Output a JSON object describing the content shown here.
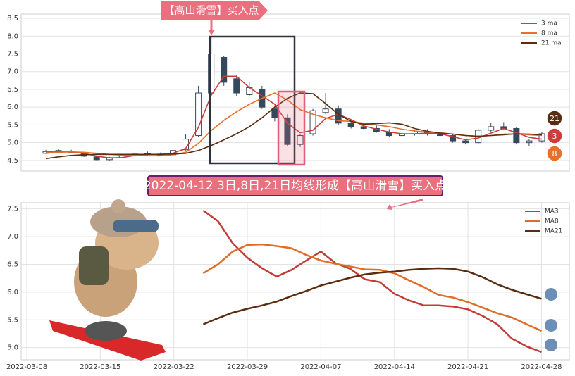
{
  "annotations": {
    "top_banner": "【高山滑雪】买入点",
    "middle_banner": "2022-04-12 3日,8日,21日均线形成【高山滑雪】买入点"
  },
  "chart_data": [
    {
      "type": "candlestick",
      "up_color": "#ffffff",
      "down_color": "#34495e",
      "open": [
        4.7,
        4.78,
        4.76,
        4.7,
        4.6,
        4.52,
        4.58,
        4.65,
        4.7,
        4.68,
        4.66,
        4.8,
        5.2,
        6.4,
        7.4,
        6.8,
        6.35,
        6.5,
        5.95,
        5.7,
        4.95,
        5.25,
        5.85,
        5.95,
        5.55,
        5.45,
        5.4,
        5.3,
        5.2,
        5.25,
        5.3,
        5.25,
        5.2,
        5.05,
        5.0,
        5.35,
        5.45,
        5.4,
        5.0,
        5.05
      ],
      "high": [
        4.8,
        4.82,
        4.8,
        4.72,
        4.62,
        4.6,
        4.68,
        4.72,
        4.75,
        4.72,
        4.82,
        5.25,
        6.6,
        8.0,
        7.45,
        6.9,
        6.7,
        6.6,
        6.05,
        5.8,
        5.25,
        5.95,
        6.4,
        6.05,
        5.65,
        5.55,
        5.48,
        5.38,
        5.3,
        5.35,
        5.38,
        5.32,
        5.25,
        5.1,
        5.4,
        5.55,
        5.58,
        5.45,
        5.1,
        5.3
      ],
      "low": [
        4.68,
        4.72,
        4.7,
        4.6,
        4.48,
        4.5,
        4.56,
        4.62,
        4.64,
        4.62,
        4.64,
        4.78,
        5.15,
        6.3,
        6.6,
        6.3,
        6.3,
        5.95,
        5.6,
        4.9,
        4.88,
        5.2,
        5.8,
        5.5,
        5.4,
        5.35,
        5.28,
        5.15,
        5.15,
        5.2,
        5.2,
        5.15,
        5.0,
        4.95,
        4.95,
        5.3,
        5.35,
        4.95,
        4.9,
        5.0
      ],
      "close": [
        4.75,
        4.75,
        4.72,
        4.62,
        4.52,
        4.58,
        4.65,
        4.68,
        4.68,
        4.65,
        4.78,
        5.1,
        6.4,
        7.5,
        6.7,
        6.4,
        6.55,
        6.0,
        5.7,
        4.95,
        5.2,
        5.9,
        5.95,
        5.55,
        5.45,
        5.4,
        5.3,
        5.2,
        5.25,
        5.3,
        5.25,
        5.2,
        5.05,
        5.0,
        5.35,
        5.45,
        5.4,
        5.0,
        5.05,
        5.25
      ],
      "series": [
        {
          "name": "3 ma",
          "color": "#cc3d3d",
          "badge": "3",
          "values": [
            4.74,
            4.75,
            4.74,
            4.7,
            4.62,
            4.57,
            4.58,
            4.64,
            4.67,
            4.67,
            4.7,
            4.84,
            5.43,
            6.33,
            6.87,
            6.87,
            6.55,
            6.32,
            6.08,
            5.55,
            5.28,
            5.35,
            5.68,
            5.8,
            5.65,
            5.47,
            5.38,
            5.3,
            5.25,
            5.25,
            5.27,
            5.25,
            5.17,
            5.08,
            5.13,
            5.27,
            5.4,
            5.28,
            5.15,
            5.1
          ]
        },
        {
          "name": "8 ma",
          "color": "#e8702a",
          "badge": "8",
          "values": [
            4.72,
            4.73,
            4.74,
            4.73,
            4.7,
            4.67,
            4.65,
            4.64,
            4.63,
            4.63,
            4.66,
            4.73,
            4.98,
            5.34,
            5.63,
            5.87,
            6.08,
            6.25,
            6.4,
            6.2,
            5.93,
            5.8,
            5.7,
            5.62,
            5.6,
            5.55,
            5.5,
            5.45,
            5.38,
            5.33,
            5.3,
            5.28,
            5.24,
            5.2,
            5.18,
            5.2,
            5.24,
            5.25,
            5.22,
            5.2
          ]
        },
        {
          "name": "21 ma",
          "color": "#5a2d10",
          "badge": "21",
          "values": [
            4.55,
            4.6,
            4.64,
            4.66,
            4.67,
            4.67,
            4.67,
            4.67,
            4.67,
            4.67,
            4.68,
            4.7,
            4.78,
            4.92,
            5.08,
            5.25,
            5.45,
            5.7,
            6.0,
            6.25,
            6.4,
            6.38,
            6.1,
            5.8,
            5.6,
            5.52,
            5.54,
            5.56,
            5.52,
            5.4,
            5.32,
            5.27,
            5.24,
            5.2,
            5.18,
            5.2,
            5.22,
            5.25,
            5.24,
            5.22
          ]
        }
      ],
      "ylim": [
        4.2,
        8.62
      ],
      "yticks": [
        4.5,
        {
          "value": 5,
          "label": "5.0"
        },
        5.5,
        {
          "value": 6,
          "label": "6.0"
        },
        6.5,
        {
          "value": 7,
          "label": "7.0"
        },
        7.5,
        {
          "value": 8,
          "label": "8.0"
        },
        8.5
      ],
      "grid": true
    },
    {
      "type": "line",
      "categories": [
        "2022-03-08",
        null,
        null,
        null,
        null,
        "2022-03-15",
        null,
        null,
        null,
        null,
        "2022-03-22",
        null,
        null,
        null,
        null,
        "2022-03-29",
        null,
        null,
        null,
        null,
        "2022-04-07",
        null,
        null,
        null,
        null,
        "2022-04-14",
        null,
        null,
        null,
        null,
        "2022-04-21",
        null,
        null,
        null,
        null,
        "2022-04-28",
        null
      ],
      "series": [
        {
          "name": "MA3",
          "color": "#c23b35",
          "values": [
            null,
            null,
            null,
            null,
            null,
            null,
            null,
            null,
            null,
            null,
            null,
            null,
            7.47,
            7.28,
            6.88,
            6.62,
            6.43,
            6.28,
            6.4,
            6.57,
            6.73,
            6.52,
            6.42,
            6.23,
            6.18,
            5.97,
            5.85,
            5.76,
            5.76,
            5.74,
            5.69,
            5.57,
            5.42,
            5.16,
            5.02,
            4.92,
            null
          ]
        },
        {
          "name": "MA8",
          "color": "#e06c26",
          "values": [
            null,
            null,
            null,
            null,
            null,
            null,
            null,
            null,
            null,
            null,
            null,
            null,
            6.34,
            6.5,
            6.73,
            6.85,
            6.86,
            6.83,
            6.79,
            6.67,
            6.57,
            6.51,
            6.46,
            6.41,
            6.4,
            6.34,
            6.21,
            6.09,
            5.95,
            5.9,
            5.82,
            5.72,
            5.62,
            5.54,
            5.42,
            5.3,
            null
          ]
        },
        {
          "name": "MA21",
          "color": "#5a2d10",
          "values": [
            null,
            null,
            null,
            null,
            null,
            null,
            null,
            null,
            null,
            null,
            null,
            null,
            5.42,
            5.53,
            5.63,
            5.7,
            5.76,
            5.83,
            5.93,
            6.02,
            6.12,
            6.19,
            6.26,
            6.32,
            6.35,
            6.37,
            6.4,
            6.42,
            6.43,
            6.42,
            6.37,
            6.27,
            6.14,
            6.04,
            5.96,
            5.88,
            null
          ]
        }
      ],
      "ylim": [
        4.78,
        7.61
      ],
      "yticks": [
        {
          "value": 5,
          "label": "5.0"
        },
        5.5,
        {
          "value": 6,
          "label": "6.0"
        },
        6.5,
        {
          "value": 7,
          "label": "7.0"
        },
        7.5
      ],
      "grid": true
    }
  ]
}
